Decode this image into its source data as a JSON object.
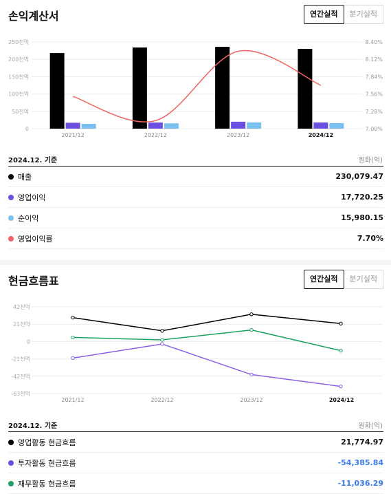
{
  "income": {
    "title": "손익계산서",
    "toggle": {
      "annual": "연간실적",
      "quarterly": "분기실적"
    },
    "basis": "2024.12. 기준",
    "unit": "원화(억)",
    "rows": [
      {
        "label": "매출",
        "value": "230,079.47",
        "color": "#000000"
      },
      {
        "label": "영업이익",
        "value": "17,720.25",
        "color": "#6b4fe0"
      },
      {
        "label": "순이익",
        "value": "15,980.15",
        "color": "#7cc0f0"
      },
      {
        "label": "영업이익률",
        "value": "7.70%",
        "color": "#f06464"
      }
    ]
  },
  "cashflow": {
    "title": "현금흐름표",
    "toggle": {
      "annual": "연간실적",
      "quarterly": "분기실적"
    },
    "basis": "2024.12. 기준",
    "unit": "원화(억)",
    "rows": [
      {
        "label": "영업활동 현금흐름",
        "value": "21,774.97",
        "color": "#000000",
        "negative": false
      },
      {
        "label": "투자활동 현금흐름",
        "value": "-54,385.84",
        "color": "#6b4fe0",
        "negative": true
      },
      {
        "label": "재무활동 현금흐름",
        "value": "-11,036.29",
        "color": "#1aa260",
        "negative": true
      }
    ]
  },
  "chart_data": [
    {
      "type": "bar",
      "categories": [
        "2021/12",
        "2022/12",
        "2023/12",
        "2024/12"
      ],
      "highlight_category": "2024/12",
      "y_ticks": [
        "250천억",
        "200천억",
        "150천억",
        "100천억",
        "50천억",
        "0"
      ],
      "y_tick_values": [
        250000,
        200000,
        150000,
        100000,
        50000,
        0
      ],
      "y2_ticks": [
        "8.40%",
        "8.12%",
        "7.84%",
        "7.56%",
        "7.28%",
        "7.00%"
      ],
      "y2_tick_values": [
        8.4,
        8.12,
        7.84,
        7.56,
        7.28,
        7.0
      ],
      "ylim": [
        0,
        250000
      ],
      "y2lim": [
        7.0,
        8.4
      ],
      "series": [
        {
          "name": "매출",
          "values": [
            218000,
            234000,
            236000,
            230079
          ],
          "color": "#000000"
        },
        {
          "name": "영업이익",
          "values": [
            17000,
            17500,
            20000,
            17720
          ],
          "color": "#6b4fe0"
        },
        {
          "name": "순이익",
          "values": [
            14000,
            15500,
            18000,
            15980
          ],
          "color": "#7cc0f0"
        },
        {
          "name": "영업이익률",
          "values": [
            7.52,
            7.13,
            8.25,
            7.7
          ],
          "color": "#f06464",
          "axis": "y2",
          "kind": "line"
        }
      ],
      "grid": true
    },
    {
      "type": "line",
      "categories": [
        "2021/12",
        "2022/12",
        "2023/12",
        "2024/12"
      ],
      "highlight_category": "2024/12",
      "y_ticks": [
        "42천억",
        "21천억",
        "0",
        "-21천억",
        "-42천억",
        "-63천억"
      ],
      "y_tick_values": [
        42000,
        21000,
        0,
        -21000,
        -42000,
        -63000
      ],
      "ylim": [
        -63000,
        42000
      ],
      "series": [
        {
          "name": "영업활동 현금흐름",
          "values": [
            29000,
            13000,
            33000,
            21775
          ],
          "color": "#000000"
        },
        {
          "name": "투자활동 현금흐름",
          "values": [
            -20000,
            -3000,
            -40000,
            -54386
          ],
          "color": "#8a5fe8"
        },
        {
          "name": "재무활동 현금흐름",
          "values": [
            5000,
            2000,
            14000,
            -11036
          ],
          "color": "#1aa260"
        }
      ],
      "grid": true
    }
  ]
}
